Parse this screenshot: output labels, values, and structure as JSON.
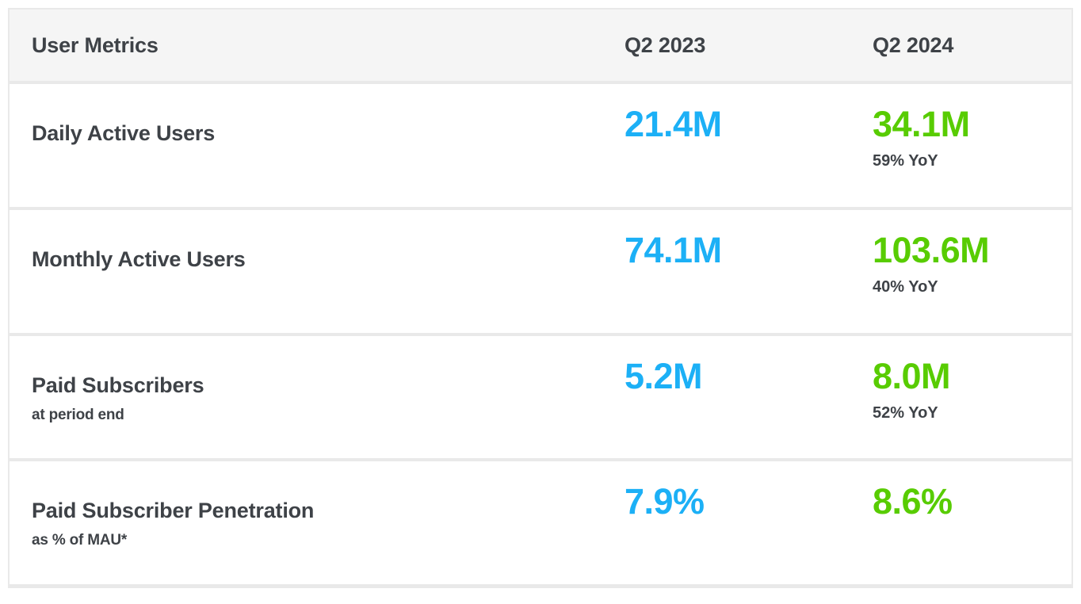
{
  "colors": {
    "q2_2023_accent": "#1cb0f6",
    "q2_2024_accent": "#58cc02",
    "text": "#3e4247",
    "header_background": "#f5f5f5",
    "border": "#e9e9e9"
  },
  "table": {
    "title": "User Metrics",
    "columns": [
      "User Metrics",
      "Q2 2023",
      "Q2 2024"
    ],
    "rows": [
      {
        "label": "Daily Active Users",
        "sublabel": "",
        "q2_2023": "21.4M",
        "q2_2024": "34.1M",
        "yoy": "59% YoY"
      },
      {
        "label": "Monthly Active Users",
        "sublabel": "",
        "q2_2023": "74.1M",
        "q2_2024": "103.6M",
        "yoy": "40% YoY"
      },
      {
        "label": "Paid Subscribers",
        "sublabel": "at period end",
        "q2_2023": "5.2M",
        "q2_2024": "8.0M",
        "yoy": "52% YoY"
      },
      {
        "label": "Paid Subscriber Penetration",
        "sublabel": "as % of MAU*",
        "q2_2023": "7.9%",
        "q2_2024": "8.6%",
        "yoy": ""
      }
    ]
  },
  "chart_data": {
    "type": "table",
    "title": "User Metrics",
    "columns": [
      "User Metrics",
      "Q2 2023",
      "Q2 2024"
    ],
    "rows": [
      {
        "metric": "Daily Active Users",
        "detail": "",
        "q2_2023": "21.4M",
        "q2_2024": "34.1M",
        "yoy_growth": "59% YoY"
      },
      {
        "metric": "Monthly Active Users",
        "detail": "",
        "q2_2023": "74.1M",
        "q2_2024": "103.6M",
        "yoy_growth": "40% YoY"
      },
      {
        "metric": "Paid Subscribers",
        "detail": "at period end",
        "q2_2023": "5.2M",
        "q2_2024": "8.0M",
        "yoy_growth": "52% YoY"
      },
      {
        "metric": "Paid Subscriber Penetration",
        "detail": "as % of MAU*",
        "q2_2023": "7.9%",
        "q2_2024": "8.6%",
        "yoy_growth": ""
      }
    ]
  }
}
